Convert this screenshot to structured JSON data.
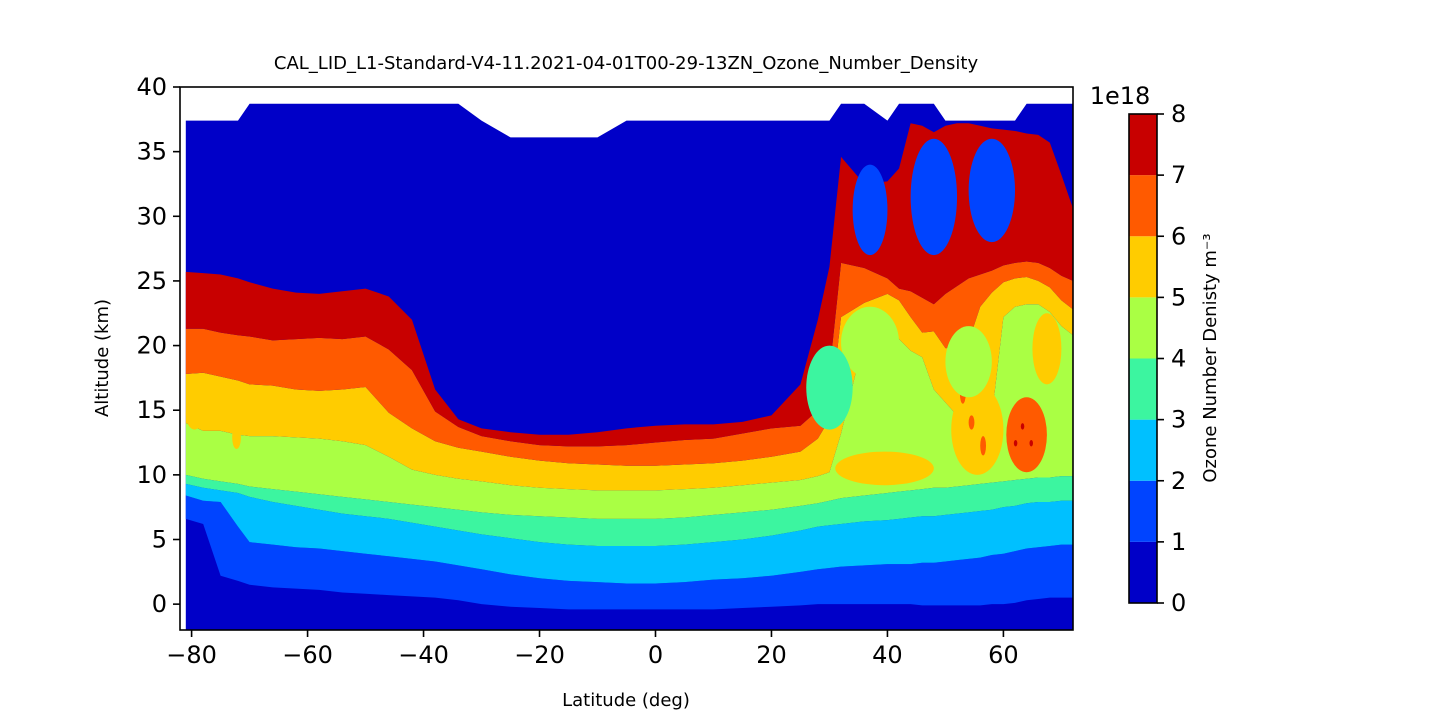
{
  "chart_data": {
    "type": "heatmap",
    "subtype": "filled-contour",
    "title": "CAL_LID_L1-Standard-V4-11.2021-04-01T00-29-13ZN_Ozone_Number_Density",
    "xlabel": "Latitude (deg)",
    "ylabel": "Altitude (km)",
    "xlim": [
      -82,
      72
    ],
    "ylim": [
      -2,
      40
    ],
    "data_xlim": [
      -81,
      72
    ],
    "xticks": [
      -80,
      -60,
      -40,
      -20,
      0,
      20,
      40,
      60
    ],
    "xtick_labels": [
      "−80",
      "−60",
      "−40",
      "−20",
      "0",
      "20",
      "40",
      "60"
    ],
    "yticks": [
      0,
      5,
      10,
      15,
      20,
      25,
      30,
      35,
      40
    ],
    "ytick_labels": [
      "0",
      "5",
      "10",
      "15",
      "20",
      "25",
      "30",
      "35",
      "40"
    ],
    "colorbar": {
      "label": "Ozone Number Denisty m⁻³",
      "offset_label": "1e18",
      "ticks": [
        0,
        1,
        2,
        3,
        4,
        5,
        6,
        7,
        8
      ],
      "levels": [
        0,
        1,
        2,
        3,
        4,
        5,
        6,
        7,
        8
      ],
      "colors": [
        "#0000c8",
        "#0044ff",
        "#00c0ff",
        "#3cf5a0",
        "#aaff44",
        "#ffcc00",
        "#ff5a00",
        "#c80000"
      ]
    },
    "profile": {
      "lat": [
        -81,
        -78,
        -75,
        -72,
        -70,
        -66,
        -62,
        -58,
        -54,
        -50,
        -46,
        -42,
        -38,
        -34,
        -30,
        -25,
        -20,
        -15,
        -10,
        -5,
        0,
        5,
        10,
        15,
        20,
        25,
        28,
        30,
        32,
        36,
        40,
        42,
        44,
        46,
        48,
        50,
        52,
        54,
        56,
        58,
        60,
        62,
        64,
        66,
        68,
        70,
        72
      ],
      "boundaries_km": {
        "1": [
          6.6,
          6.2,
          2.2,
          1.8,
          1.5,
          1.3,
          1.2,
          1.1,
          0.9,
          0.8,
          0.7,
          0.6,
          0.5,
          0.3,
          0.0,
          -0.2,
          -0.3,
          -0.4,
          -0.4,
          -0.4,
          -0.4,
          -0.4,
          -0.4,
          -0.3,
          -0.2,
          -0.1,
          0.0,
          0.0,
          0.0,
          0.0,
          0.0,
          0.0,
          0.0,
          -0.1,
          -0.1,
          -0.1,
          -0.1,
          -0.1,
          -0.1,
          0.0,
          0.0,
          0.1,
          0.3,
          0.4,
          0.5,
          0.5,
          0.5
        ],
        "2": [
          8.4,
          8.0,
          7.9,
          6.0,
          4.8,
          4.6,
          4.4,
          4.3,
          4.1,
          3.9,
          3.7,
          3.5,
          3.3,
          3.0,
          2.7,
          2.3,
          2.0,
          1.8,
          1.7,
          1.6,
          1.6,
          1.7,
          1.9,
          2.0,
          2.2,
          2.5,
          2.7,
          2.8,
          2.9,
          3.0,
          3.1,
          3.1,
          3.1,
          3.2,
          3.2,
          3.3,
          3.4,
          3.5,
          3.6,
          3.8,
          3.9,
          4.1,
          4.3,
          4.4,
          4.5,
          4.6,
          4.6
        ],
        "3": [
          9.3,
          9.0,
          8.8,
          8.6,
          8.3,
          7.9,
          7.6,
          7.3,
          7.0,
          6.8,
          6.6,
          6.3,
          6.0,
          5.7,
          5.4,
          5.1,
          4.8,
          4.6,
          4.5,
          4.5,
          4.5,
          4.6,
          4.8,
          5.0,
          5.3,
          5.7,
          6.0,
          6.1,
          6.2,
          6.4,
          6.5,
          6.6,
          6.7,
          6.8,
          6.8,
          6.9,
          7.0,
          7.1,
          7.2,
          7.3,
          7.5,
          7.6,
          7.8,
          7.9,
          7.9,
          8.0,
          8.0
        ],
        "4": [
          10.0,
          9.7,
          9.5,
          9.3,
          9.1,
          8.9,
          8.7,
          8.5,
          8.3,
          8.1,
          7.9,
          7.7,
          7.5,
          7.3,
          7.1,
          6.9,
          6.8,
          6.7,
          6.6,
          6.6,
          6.6,
          6.7,
          6.9,
          7.1,
          7.3,
          7.6,
          7.8,
          8.0,
          8.2,
          8.4,
          8.6,
          8.7,
          8.8,
          8.9,
          9.0,
          9.0,
          9.1,
          9.2,
          9.3,
          9.4,
          9.5,
          9.6,
          9.7,
          9.8,
          9.8,
          9.9,
          9.9
        ],
        "5": [
          14.0,
          13.4,
          13.4,
          13.1,
          13.0,
          13.0,
          12.9,
          12.8,
          12.6,
          12.3,
          11.4,
          10.4,
          10.0,
          9.7,
          9.5,
          9.2,
          9.0,
          8.9,
          8.8,
          8.8,
          8.8,
          8.9,
          9.0,
          9.2,
          9.4,
          9.6,
          9.9,
          10.2,
          13.2,
          20.6,
          21.5,
          20.5,
          19.6,
          19.1,
          16.6,
          15.6,
          14.6,
          19.2,
          14.2,
          14.5,
          22.2,
          23.0,
          23.2,
          23.2,
          22.6,
          21.5,
          20.8
        ],
        "6": [
          17.8,
          17.9,
          17.6,
          17.3,
          17.0,
          16.9,
          16.6,
          16.5,
          16.6,
          16.8,
          14.8,
          13.6,
          12.6,
          12.1,
          11.8,
          11.4,
          11.1,
          10.9,
          10.8,
          10.7,
          10.7,
          10.8,
          10.9,
          11.1,
          11.4,
          11.8,
          12.8,
          14.3,
          22.2,
          23.3,
          24.0,
          23.5,
          22.2,
          21.0,
          21.1,
          19.8,
          19.8,
          20.3,
          23.0,
          24.1,
          24.9,
          25.2,
          25.3,
          25.0,
          24.5,
          23.5,
          22.8
        ],
        "7": [
          21.3,
          21.3,
          21.0,
          20.8,
          20.7,
          20.4,
          20.5,
          20.6,
          20.5,
          20.7,
          19.7,
          18.1,
          14.9,
          13.7,
          13.0,
          12.6,
          12.3,
          12.2,
          12.2,
          12.3,
          12.5,
          12.7,
          12.8,
          13.2,
          13.6,
          13.8,
          15.0,
          17.9,
          26.4,
          26.0,
          25.2,
          24.4,
          24.2,
          23.7,
          23.2,
          24.0,
          24.6,
          25.2,
          25.5,
          25.8,
          26.2,
          26.4,
          26.5,
          26.4,
          26.0,
          25.4,
          25.0
        ],
        "8": [
          25.7,
          25.6,
          25.5,
          25.2,
          24.9,
          24.4,
          24.1,
          24.0,
          24.2,
          24.4,
          23.8,
          22.0,
          16.6,
          14.3,
          13.6,
          13.3,
          13.1,
          13.1,
          13.3,
          13.6,
          13.8,
          13.9,
          13.9,
          14.1,
          14.6,
          17.0,
          22.0,
          26.1,
          34.6,
          32.5,
          32.7,
          33.7,
          37.2,
          37.0,
          36.5,
          37.0,
          37.2,
          37.2,
          37.0,
          36.8,
          36.7,
          36.6,
          36.4,
          36.3,
          35.7,
          33.2,
          30.6
        ]
      },
      "top_km": [
        37.4,
        37.4,
        37.4,
        37.4,
        38.7,
        38.7,
        38.7,
        38.7,
        38.7,
        38.7,
        38.7,
        38.7,
        38.7,
        38.7,
        37.4,
        36.1,
        36.1,
        36.1,
        36.1,
        37.4,
        37.4,
        37.4,
        37.4,
        37.4,
        37.4,
        37.4,
        37.4,
        37.4,
        38.7,
        38.7,
        37.4,
        38.7,
        38.7,
        38.7,
        38.7,
        37.4,
        37.4,
        37.4,
        37.4,
        37.4,
        37.4,
        37.4,
        38.7,
        38.7,
        38.7,
        38.7,
        38.7
      ]
    },
    "features": [
      {
        "level": 7,
        "lat_range": [
          60.5,
          67.5
        ],
        "alt_range": [
          10.2,
          16.0
        ],
        "shape": "ellipse"
      },
      {
        "level": 8,
        "lat_range": [
          63,
          63.6
        ],
        "alt_range": [
          13.5,
          14.0
        ],
        "shape": "ellipse"
      },
      {
        "level": 8,
        "lat_range": [
          61.8,
          62.4
        ],
        "alt_range": [
          12.2,
          12.7
        ],
        "shape": "ellipse"
      },
      {
        "level": 8,
        "lat_range": [
          64.5,
          65.1
        ],
        "alt_range": [
          12.2,
          12.7
        ],
        "shape": "ellipse"
      },
      {
        "level": 6,
        "lat_range": [
          -81,
          -78
        ],
        "alt_range": [
          13.5,
          16.0
        ],
        "shape": "ellipse"
      },
      {
        "level": 6,
        "lat_range": [
          -73,
          -71.5
        ],
        "alt_range": [
          12.0,
          13.8
        ],
        "shape": "ellipse"
      },
      {
        "level": 6,
        "lat_range": [
          51,
          60
        ],
        "alt_range": [
          10.0,
          17.0
        ],
        "shape": "ellipse"
      },
      {
        "level": 7,
        "lat_range": [
          52.5,
          53.5
        ],
        "alt_range": [
          15.5,
          17.0
        ],
        "shape": "ellipse"
      },
      {
        "level": 7,
        "lat_range": [
          56,
          57
        ],
        "alt_range": [
          11.5,
          13.0
        ],
        "shape": "ellipse"
      },
      {
        "level": 7,
        "lat_range": [
          54,
          55
        ],
        "alt_range": [
          13.5,
          14.6
        ],
        "shape": "ellipse"
      },
      {
        "level": 6,
        "lat_range": [
          65,
          70
        ],
        "alt_range": [
          17.0,
          22.5
        ],
        "shape": "ellipse"
      },
      {
        "level": 6,
        "lat_range": [
          31,
          48
        ],
        "alt_range": [
          9.2,
          11.8
        ],
        "shape": "ellipse"
      },
      {
        "level": 5,
        "lat_range": [
          32,
          42
        ],
        "alt_range": [
          17.5,
          23.0
        ],
        "shape": "ellipse"
      },
      {
        "level": 5,
        "lat_range": [
          50,
          58
        ],
        "alt_range": [
          16.0,
          21.5
        ],
        "shape": "ellipse"
      },
      {
        "level": 4,
        "lat_range": [
          26,
          34
        ],
        "alt_range": [
          13.5,
          20.0
        ],
        "shape": "ellipse"
      },
      {
        "level": 2,
        "lat_range": [
          44,
          52
        ],
        "alt_range": [
          27.0,
          36.0
        ],
        "shape": "ellipse"
      },
      {
        "level": 2,
        "lat_range": [
          54,
          62
        ],
        "alt_range": [
          28.0,
          36.0
        ],
        "shape": "ellipse"
      },
      {
        "level": 2,
        "lat_range": [
          34,
          40
        ],
        "alt_range": [
          27.0,
          34.0
        ],
        "shape": "ellipse"
      }
    ]
  }
}
